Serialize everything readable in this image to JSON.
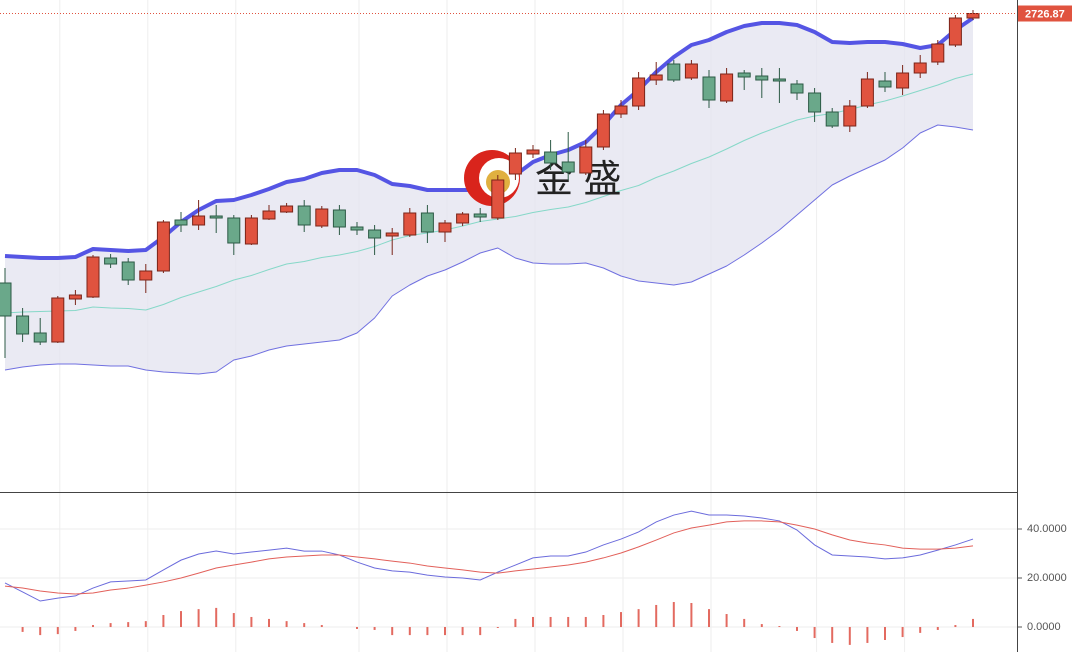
{
  "chart_data": [
    {
      "type": "candlestick",
      "watermark": "金 盛",
      "categories": [
        null,
        null,
        null,
        null,
        null,
        null,
        null,
        null,
        null,
        null,
        null,
        null,
        null,
        null,
        null,
        null,
        null,
        null,
        null,
        null,
        null,
        null,
        null,
        null,
        null,
        null,
        null,
        null,
        null,
        null,
        null,
        null,
        null,
        null,
        null,
        null,
        null,
        null,
        null,
        null,
        null,
        null,
        null,
        null,
        null,
        null,
        null,
        null,
        null,
        null,
        null,
        null,
        null,
        null,
        null,
        null
      ],
      "open": [
        2524.75,
        2500,
        2487.25,
        2480.5,
        2512.75,
        2514.25,
        2543.5,
        2540.5,
        2527,
        2533.75,
        2572,
        2568.25,
        2575,
        2573.5,
        2554,
        2572.75,
        2578,
        2582.5,
        2567.5,
        2579.5,
        2566.75,
        2564.5,
        2560,
        2560.75,
        2577.25,
        2563,
        2569.75,
        2576.5,
        2573.5,
        2606.5,
        2621.5,
        2623,
        2615.5,
        2607.25,
        2626.75,
        2651.5,
        2657.5,
        2677,
        2689,
        2678.5,
        2679.25,
        2661.25,
        2682.25,
        2680,
        2677.75,
        2674,
        2667.25,
        2653,
        2642.5,
        2657.5,
        2676.25,
        2671,
        2682.25,
        2690.5,
        2703.25,
        2723.5
      ],
      "high": [
        2536,
        2506,
        2498.5,
        2515,
        2519.5,
        2545.75,
        2546.5,
        2543.5,
        2539,
        2572,
        2578,
        2587,
        2583.25,
        2575.75,
        2575.75,
        2583.25,
        2584.75,
        2587,
        2582.5,
        2583.25,
        2570.5,
        2568.25,
        2566,
        2581,
        2583.25,
        2572,
        2578,
        2581,
        2605.75,
        2626,
        2628.25,
        2632,
        2638,
        2632,
        2654.5,
        2662,
        2683,
        2690.5,
        2692,
        2692,
        2684.5,
        2686,
        2684.5,
        2686,
        2686,
        2677,
        2671,
        2656,
        2662,
        2683,
        2683,
        2688.25,
        2695.75,
        2707,
        2725.75,
        2729.5
      ],
      "low": [
        2468.5,
        2480.5,
        2478.25,
        2479.75,
        2508.25,
        2513.5,
        2536,
        2523.25,
        2517.25,
        2532.25,
        2563,
        2564.5,
        2562.25,
        2545.75,
        2553.25,
        2572,
        2577.25,
        2563,
        2566,
        2560.75,
        2560.75,
        2545.75,
        2545.75,
        2559.25,
        2554.75,
        2555.5,
        2567.5,
        2570.5,
        2572,
        2602,
        2618.5,
        2609.5,
        2602,
        2605.75,
        2624.5,
        2648.5,
        2654.5,
        2673.25,
        2675.5,
        2677,
        2656,
        2659.75,
        2669.5,
        2663.5,
        2659.75,
        2662,
        2645.5,
        2641,
        2638,
        2656,
        2668,
        2665.75,
        2678.5,
        2688.25,
        2701.75,
        2722
      ],
      "close": [
        2500,
        2486.5,
        2480.5,
        2513.5,
        2515.75,
        2544.25,
        2539,
        2527,
        2533.75,
        2570.5,
        2568.25,
        2575,
        2573.5,
        2554.75,
        2573.5,
        2578.75,
        2582.5,
        2568.25,
        2580.25,
        2566.75,
        2564.5,
        2558.5,
        2562.25,
        2577.25,
        2563,
        2569.75,
        2576.5,
        2574.25,
        2602,
        2622.25,
        2624.5,
        2614.75,
        2608,
        2626.75,
        2651.5,
        2657.5,
        2678.5,
        2680.75,
        2677,
        2689,
        2662,
        2681.5,
        2679.25,
        2677,
        2676.25,
        2667.25,
        2653,
        2642.5,
        2657.5,
        2677.75,
        2671.75,
        2682.25,
        2689.75,
        2704,
        2723.5,
        2726.87
      ],
      "up_color": "#e0533f",
      "down_color": "#6aa88a",
      "band_fill": "#e3e3ef",
      "series": [
        {
          "color": "#5555e4",
          "values": [
            2545,
            2544.25,
            2543.5,
            2543.5,
            2544.25,
            2550.25,
            2549.5,
            2548.75,
            2549.5,
            2559.25,
            2570.5,
            2579.5,
            2586.25,
            2587,
            2590.75,
            2595.25,
            2600.5,
            2602.75,
            2607.25,
            2609.5,
            2609.5,
            2605.75,
            2599,
            2597.5,
            2594.5,
            2594.5,
            2594.5,
            2594.5,
            2594.5,
            2605.75,
            2615.5,
            2620.75,
            2624.5,
            2630.5,
            2643.25,
            2658.25,
            2669.5,
            2683,
            2694.25,
            2703.25,
            2707,
            2713,
            2717.5,
            2719.75,
            2719.75,
            2718.25,
            2713,
            2705.5,
            2704.75,
            2705.5,
            2705.5,
            2704,
            2701,
            2703.25,
            2714.5,
            2723.5
          ]
        },
        {
          "color": "#86d8c8",
          "values": [
            2502.25,
            2503,
            2503.38,
            2503.75,
            2504.13,
            2506.75,
            2506,
            2505.63,
            2504.5,
            2508.63,
            2513.88,
            2518,
            2522.13,
            2527,
            2530.38,
            2534.88,
            2539,
            2540.88,
            2543.88,
            2545.75,
            2548.38,
            2552.13,
            2557,
            2560.38,
            2562.25,
            2564.5,
            2567.5,
            2570.88,
            2572.75,
            2574.63,
            2577.63,
            2579.88,
            2581.75,
            2585.13,
            2589.63,
            2594.13,
            2597.88,
            2603.88,
            2608.75,
            2614.38,
            2619.25,
            2625.25,
            2631.63,
            2637.25,
            2642.13,
            2647,
            2650,
            2651.88,
            2654.88,
            2658.25,
            2661.25,
            2665,
            2669.13,
            2673.25,
            2678.13,
            2681.5
          ]
        },
        {
          "color": "#7070e0",
          "values": [
            2459.5,
            2461.75,
            2463.25,
            2464,
            2464,
            2463.25,
            2462.5,
            2462.5,
            2459.5,
            2458,
            2457.25,
            2456.5,
            2458,
            2467,
            2470,
            2474.5,
            2477.5,
            2479,
            2480.5,
            2482,
            2487.25,
            2498.5,
            2515,
            2523.25,
            2530,
            2534.5,
            2540.5,
            2547.25,
            2551,
            2543.5,
            2539.75,
            2539,
            2539,
            2539.75,
            2536,
            2530,
            2526.25,
            2524.75,
            2523.25,
            2525.5,
            2531.5,
            2537.5,
            2545.75,
            2554.75,
            2564.5,
            2575.75,
            2587,
            2598.25,
            2605,
            2611,
            2617,
            2626,
            2637.25,
            2643.25,
            2641.75,
            2639.5
          ]
        }
      ],
      "ylim": [
        2368,
        2737
      ]
    },
    {
      "type": "macd",
      "series": [
        {
          "color": "#6b6bdc",
          "values": [
            18.0,
            14.3,
            10.6,
            11.8,
            12.7,
            15.9,
            18.4,
            18.8,
            19.2,
            23.3,
            27.3,
            29.8,
            31.0,
            29.8,
            30.6,
            31.4,
            32.2,
            31.0,
            31.0,
            29.4,
            26.5,
            24.1,
            22.9,
            22.4,
            21.2,
            20.4,
            20.0,
            19.2,
            22.4,
            25.3,
            28.2,
            29.0,
            29.0,
            30.6,
            33.5,
            35.9,
            38.8,
            42.9,
            45.7,
            47.3,
            45.7,
            45.7,
            45.3,
            44.5,
            43.3,
            39.6,
            33.5,
            29.4,
            29.0,
            28.6,
            27.8,
            28.2,
            29.4,
            31.4,
            33.5,
            35.9
          ]
        },
        {
          "color": "#e2605a",
          "values": [
            16.7,
            15.9,
            14.7,
            13.9,
            13.5,
            13.9,
            15.1,
            15.9,
            17.1,
            18.4,
            20.0,
            22.0,
            24.1,
            25.3,
            26.5,
            27.8,
            28.6,
            29.0,
            29.4,
            29.4,
            28.6,
            27.8,
            26.9,
            26.1,
            24.9,
            24.1,
            23.3,
            22.4,
            22.0,
            22.9,
            23.7,
            24.5,
            25.3,
            26.5,
            28.2,
            30.2,
            32.7,
            35.5,
            38.4,
            40.4,
            41.6,
            42.9,
            43.3,
            43.3,
            42.9,
            41.6,
            40.0,
            37.6,
            35.5,
            34.3,
            33.5,
            32.2,
            31.8,
            31.8,
            32.2,
            33.1
          ]
        }
      ],
      "histogram": {
        "color": "#e36a60",
        "values": [
          0,
          -2.0,
          -3.3,
          -2.9,
          -1.6,
          0.8,
          1.6,
          2.0,
          2.4,
          4.9,
          6.5,
          7.3,
          7.8,
          5.7,
          4.1,
          3.3,
          2.4,
          1.6,
          0.8,
          0,
          -0.8,
          -1.2,
          -3.3,
          -3.3,
          -3.3,
          -3.3,
          -3.3,
          -3.3,
          -0.4,
          3.3,
          4.1,
          4.1,
          4.1,
          4.1,
          4.9,
          6.1,
          7.3,
          9.0,
          10.2,
          9.8,
          7.3,
          5.3,
          3.3,
          1.2,
          0.4,
          -1.6,
          -4.5,
          -6.5,
          -7.3,
          -6.5,
          -5.3,
          -4.1,
          -2.4,
          -1.2,
          0.8,
          3.3
        ]
      },
      "ylim": [
        -10.2,
        54.7
      ],
      "yticks": [
        {
          "value": 0,
          "label": "0.0000"
        },
        {
          "value": 20,
          "label": "20.0000"
        },
        {
          "value": 40,
          "label": "40.0000"
        }
      ],
      "grid": true
    }
  ]
}
